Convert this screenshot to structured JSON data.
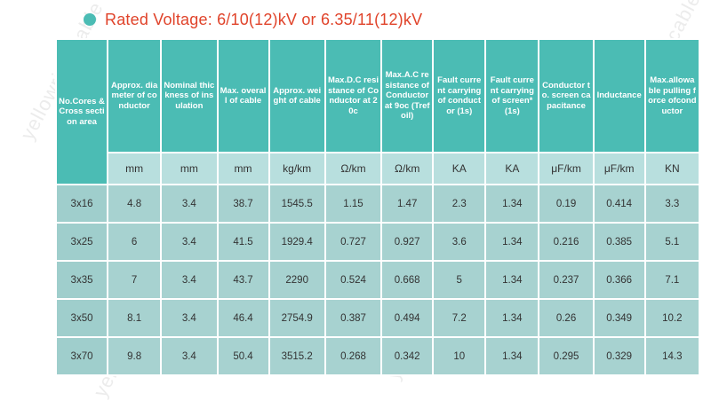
{
  "title": "Rated Voltage: 6/10(12)kV or 6.35/11(12)kV",
  "watermark": "yellowrivercable",
  "colors": {
    "accent": "#4bbcb4",
    "title": "#e0432a",
    "header_bg": "#4bbcb4",
    "row_bg": "#a7d2d0",
    "unit_bg": "#b8dfde"
  },
  "table": {
    "headers": [
      "No.Cores & Cross section area",
      "Approx. diameter of conductor",
      "Nominal thickness of insulation",
      "Max. overall of cable",
      "Approx. weight of cable",
      "Max.D.C resistance of Conductor at 20c",
      "Max.A.C resistance of Conductor at 9oc (Trefoil)",
      "Fault current carrying of conductor (1s)",
      "Fault current carrying of screen* (1s)",
      "Conductor to. screen capacitance",
      "Inductance",
      "Max.allowable pulling force ofconductor"
    ],
    "units": [
      "",
      "mm",
      "mm",
      "mm",
      "kg/km",
      "Ω/km",
      "Ω/km",
      "KA",
      "KA",
      "μF/km",
      "μF/km",
      "KN"
    ],
    "rows": [
      [
        "3x16",
        "4.8",
        "3.4",
        "38.7",
        "1545.5",
        "1.15",
        "1.47",
        "2.3",
        "1.34",
        "0.19",
        "0.414",
        "3.3"
      ],
      [
        "3x25",
        "6",
        "3.4",
        "41.5",
        "1929.4",
        "0.727",
        "0.927",
        "3.6",
        "1.34",
        "0.216",
        "0.385",
        "5.1"
      ],
      [
        "3x35",
        "7",
        "3.4",
        "43.7",
        "2290",
        "0.524",
        "0.668",
        "5",
        "1.34",
        "0.237",
        "0.366",
        "7.1"
      ],
      [
        "3x50",
        "8.1",
        "3.4",
        "46.4",
        "2754.9",
        "0.387",
        "0.494",
        "7.2",
        "1.34",
        "0.26",
        "0.349",
        "10.2"
      ],
      [
        "3x70",
        "9.8",
        "3.4",
        "50.4",
        "3515.2",
        "0.268",
        "0.342",
        "10",
        "1.34",
        "0.295",
        "0.329",
        "14.3"
      ]
    ]
  }
}
